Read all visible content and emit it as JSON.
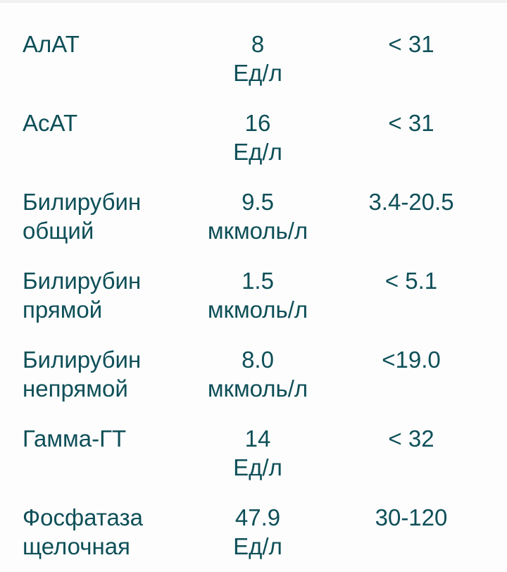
{
  "page": {
    "background_color": "#fdfdfd",
    "text_color": "#0e4f58"
  },
  "table": {
    "columns": [
      "name",
      "result",
      "unit",
      "reference_range"
    ],
    "rows": [
      {
        "name_line1": "АлАТ",
        "name_line2": "",
        "value": "8",
        "unit": "Ед/л",
        "reference": "< 31"
      },
      {
        "name_line1": "АсАТ",
        "name_line2": "",
        "value": "16",
        "unit": "Ед/л",
        "reference": "< 31"
      },
      {
        "name_line1": "Билирубин",
        "name_line2": "общий",
        "value": "9.5",
        "unit": "мкмоль/л",
        "reference": "3.4-20.5"
      },
      {
        "name_line1": "Билирубин",
        "name_line2": "прямой",
        "value": "1.5",
        "unit": "мкмоль/л",
        "reference": "< 5.1"
      },
      {
        "name_line1": "Билирубин",
        "name_line2": "непрямой",
        "value": "8.0",
        "unit": "мкмоль/л",
        "reference": "<19.0"
      },
      {
        "name_line1": "Гамма-ГТ",
        "name_line2": "",
        "value": "14",
        "unit": "Ед/л",
        "reference": "< 32"
      },
      {
        "name_line1": "Фосфатаза",
        "name_line2": "щелочная",
        "value": "47.9",
        "unit": "Ед/л",
        "reference": "30-120"
      }
    ]
  }
}
